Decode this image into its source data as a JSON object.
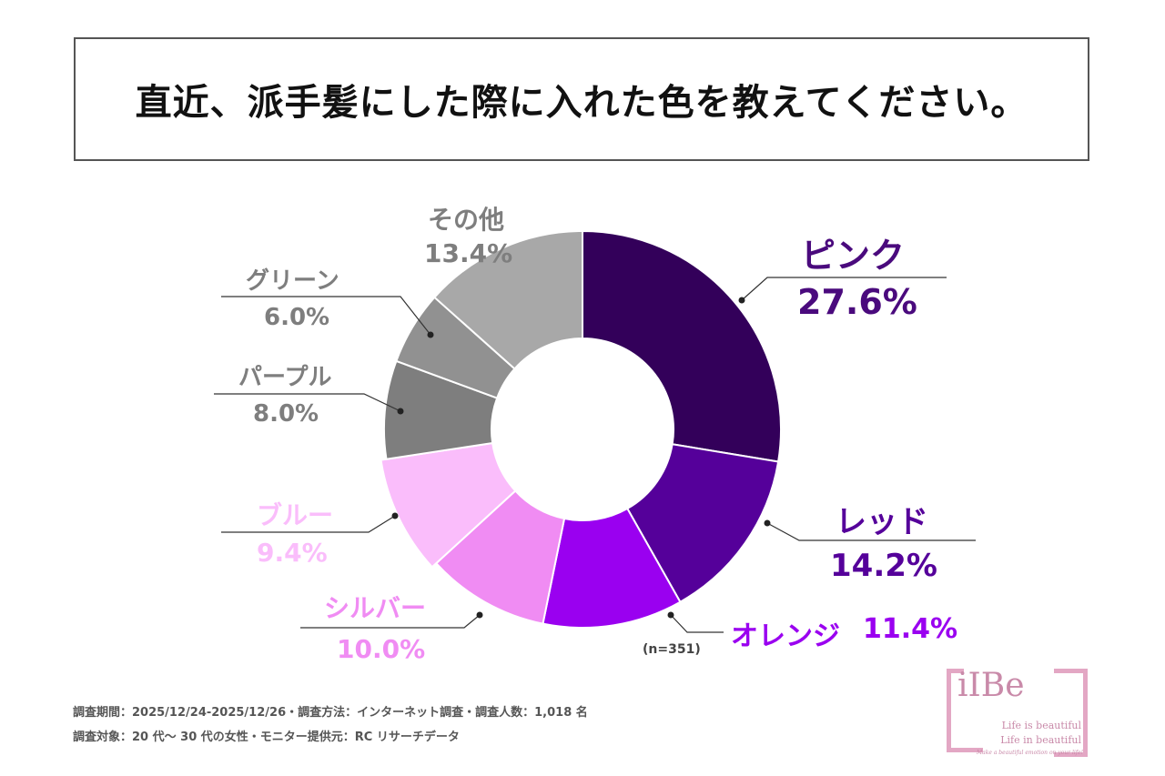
{
  "title": "直近、派手髪にした際に入れた色を教えてください。",
  "chart_data": {
    "type": "pie",
    "categories": [
      "ピンク",
      "レッド",
      "オレンジ",
      "シルバー",
      "ブルー",
      "パープル",
      "グリーン",
      "その他"
    ],
    "values": [
      27.6,
      14.2,
      11.4,
      10.0,
      9.4,
      8.0,
      6.0,
      13.4
    ],
    "labels": [
      "27.6%",
      "14.2%",
      "11.4%",
      "10.0%",
      "9.4%",
      "8.0%",
      "6.0%",
      "13.4%"
    ],
    "colors": [
      "#33005a",
      "#55009a",
      "#9a00f0",
      "#f08cf3",
      "#fabdfb",
      "#7e7e7e",
      "#919191",
      "#a8a8a8"
    ],
    "label_colors": [
      "#4a0a7d",
      "#55009a",
      "#9a00f0",
      "#f08cf3",
      "#fabdfb",
      "#7e7e7e",
      "#7e7e7e",
      "#7e7e7e"
    ],
    "donut": true,
    "n_label": "(n=351)"
  },
  "footer": {
    "line1": "調査期間：2025/12/24-2025/12/26・調査方法：インターネット調査・調査人数：1,018 名",
    "line2": "調査対象：20 代〜 30 代の女性・モニター提供元：RC リサーチデータ"
  },
  "logo": {
    "brand": "iIBe",
    "tagline1": "Life is beautiful",
    "tagline2": "Life in beautiful",
    "tagline3": "Make a beautiful emotion on your life!"
  }
}
